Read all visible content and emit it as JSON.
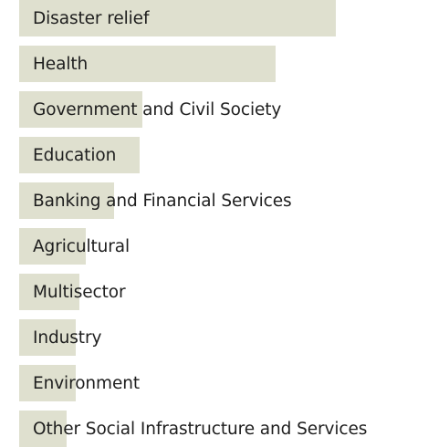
{
  "chart_data": {
    "type": "bar",
    "orientation": "horizontal",
    "categories": [
      "Disaster relief",
      "Health",
      "Government and Civil Society",
      "Education",
      "Banking and Financial Services",
      "Agricultural",
      "Multisector",
      "Industry",
      "Environment",
      "Other Social Infrastructure and Services"
    ],
    "values": [
      100,
      81,
      39,
      38,
      30,
      21,
      19,
      18,
      18,
      15
    ],
    "xlim": [
      0,
      100
    ],
    "grid": false,
    "legend": "none",
    "bar_color": "#dfe0cf",
    "label_color": "#1e1e1e"
  }
}
